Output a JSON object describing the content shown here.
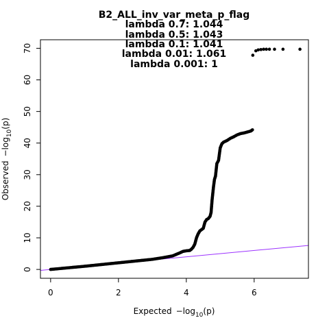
{
  "chart_data": {
    "type": "scatter",
    "title": "B2_ALL_inv_var_meta_p_flag",
    "subtitle_lines": [
      "lambda 0.7: 1.044",
      "lambda 0.5: 1.043",
      "lambda 0.1: 1.041",
      "lambda 0.01: 1.061",
      "lambda 0.001: 1"
    ],
    "xlabel": {
      "prefix": "Expected",
      "minus": "−",
      "log": "log",
      "sub": "10",
      "arg": "(p)"
    },
    "ylabel": {
      "prefix": "Observed",
      "minus": "−",
      "log": "log",
      "sub": "10",
      "arg": "(p)"
    },
    "xlim": [
      -0.3,
      7.6
    ],
    "ylim": [
      -2.8,
      72.7
    ],
    "x_ticks": [
      0,
      2,
      4,
      6
    ],
    "y_ticks": [
      0,
      10,
      20,
      30,
      40,
      50,
      60,
      70
    ],
    "grid": false,
    "point_color": "#000000",
    "line_color": "#9b30ff",
    "reference_line": {
      "intercept": 0,
      "slope": 1
    },
    "curve": [
      [
        0.0,
        0.0
      ],
      [
        0.5,
        0.5
      ],
      [
        1.0,
        1.0
      ],
      [
        1.5,
        1.55
      ],
      [
        2.0,
        2.1
      ],
      [
        2.5,
        2.65
      ],
      [
        3.0,
        3.2
      ],
      [
        3.3,
        3.7
      ],
      [
        3.6,
        4.3
      ],
      [
        3.8,
        5.2
      ],
      [
        3.9,
        5.7
      ],
      [
        4.0,
        5.9
      ],
      [
        4.1,
        6.0
      ],
      [
        4.15,
        6.4
      ],
      [
        4.2,
        7.0
      ],
      [
        4.25,
        8.0
      ],
      [
        4.3,
        10.0
      ],
      [
        4.35,
        11.3
      ],
      [
        4.4,
        12.2
      ],
      [
        4.5,
        13.0
      ],
      [
        4.55,
        15.0
      ],
      [
        4.6,
        15.8
      ],
      [
        4.65,
        16.1
      ],
      [
        4.7,
        16.8
      ],
      [
        4.73,
        18.0
      ],
      [
        4.76,
        22.0
      ],
      [
        4.8,
        26.0
      ],
      [
        4.83,
        28.5
      ],
      [
        4.86,
        29.5
      ],
      [
        4.9,
        33.5
      ],
      [
        4.95,
        34.5
      ],
      [
        5.0,
        38.5
      ],
      [
        5.05,
        39.8
      ],
      [
        5.1,
        40.3
      ],
      [
        5.2,
        40.8
      ],
      [
        5.3,
        41.5
      ],
      [
        5.4,
        42.0
      ],
      [
        5.5,
        42.6
      ],
      [
        5.6,
        43.0
      ],
      [
        5.7,
        43.2
      ],
      [
        5.8,
        43.5
      ],
      [
        5.9,
        43.8
      ],
      [
        5.95,
        44.2
      ]
    ],
    "outlier_points": [
      [
        5.96,
        67.8
      ],
      [
        6.05,
        69.2
      ],
      [
        6.12,
        69.5
      ],
      [
        6.2,
        69.6
      ],
      [
        6.28,
        69.7
      ],
      [
        6.36,
        69.7
      ],
      [
        6.45,
        69.7
      ],
      [
        6.6,
        69.7
      ],
      [
        6.85,
        69.7
      ],
      [
        7.35,
        69.7
      ]
    ]
  }
}
